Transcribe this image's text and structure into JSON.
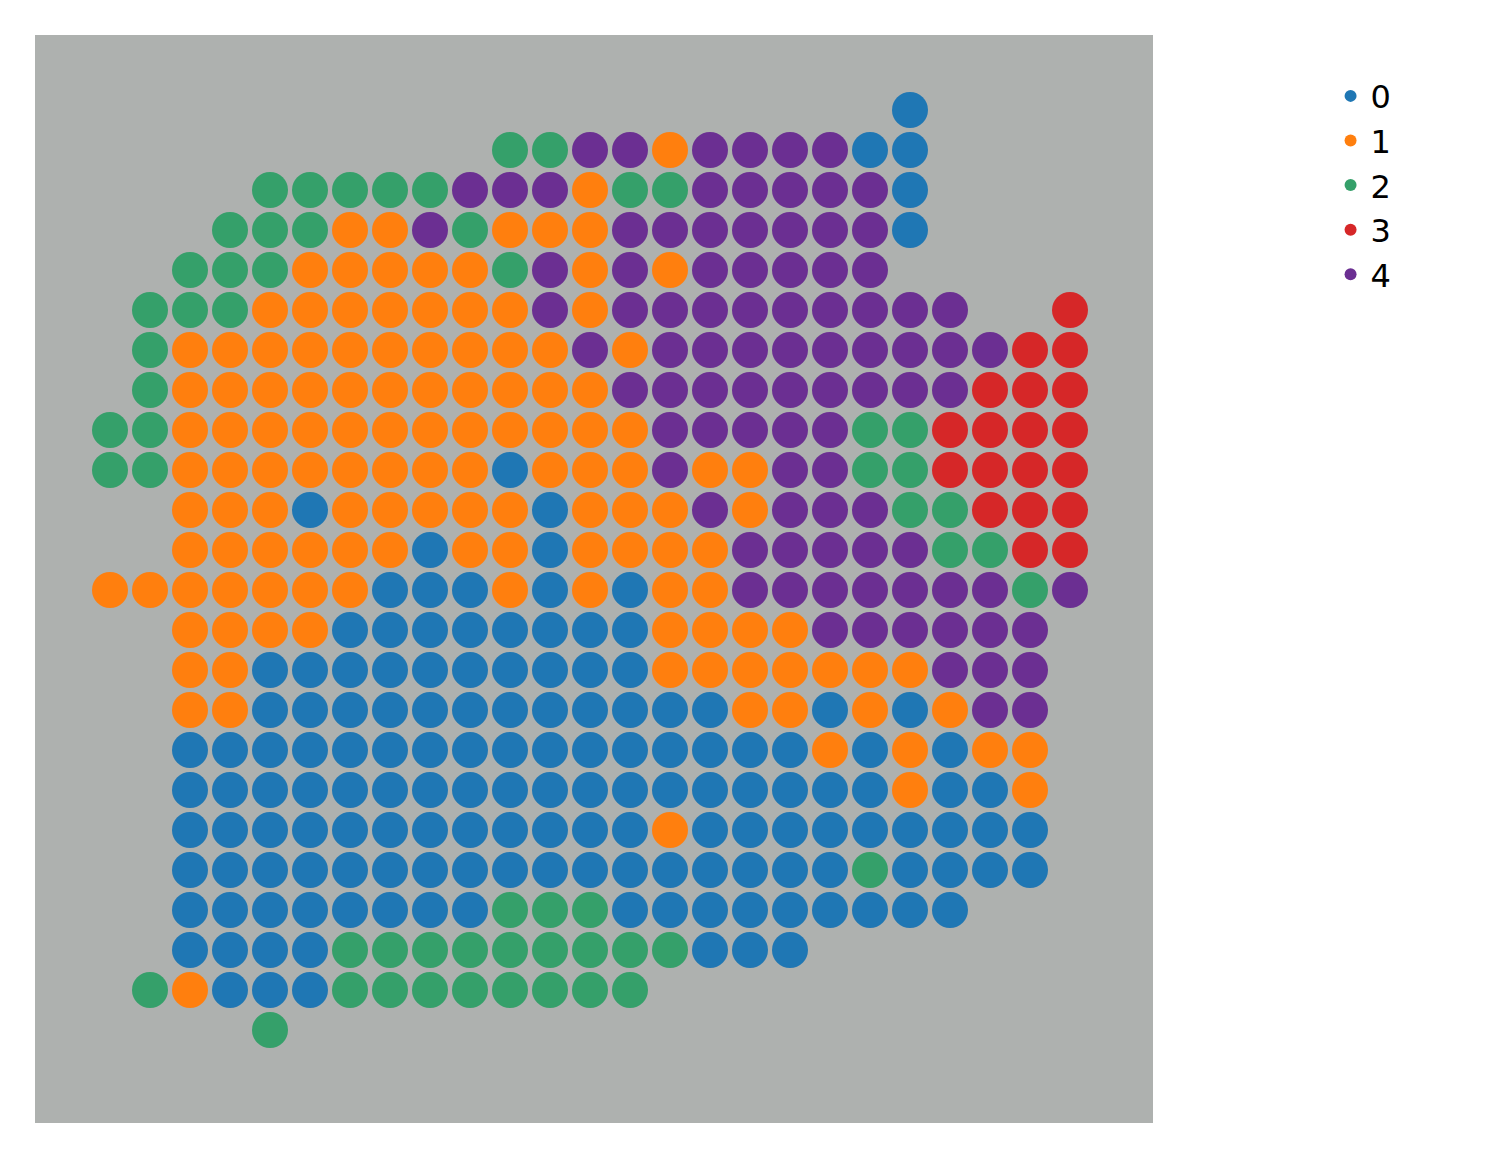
{
  "chart_data": {
    "type": "spatial_scatter",
    "x": [
      110,
      150,
      190,
      230,
      270,
      310,
      350,
      390,
      430,
      470,
      510,
      550,
      590,
      630,
      670,
      710,
      750,
      790,
      830,
      870,
      910,
      950,
      990,
      1030,
      1070
    ],
    "y": [
      110,
      150,
      190,
      230,
      270,
      310,
      350,
      390,
      430,
      470,
      510,
      550,
      590,
      630,
      670,
      710,
      750,
      790,
      830,
      870,
      910,
      950,
      990,
      1030
    ],
    "cells": [
      [
        null,
        null,
        null,
        null,
        null,
        null,
        null,
        null,
        null,
        null,
        null,
        null,
        null,
        null,
        null,
        null,
        null,
        null,
        null,
        null,
        0,
        null,
        null,
        null,
        null
      ],
      [
        null,
        null,
        null,
        null,
        null,
        null,
        null,
        null,
        null,
        null,
        2,
        2,
        4,
        4,
        1,
        4,
        4,
        4,
        4,
        0,
        0,
        null,
        null,
        null,
        null
      ],
      [
        null,
        null,
        null,
        null,
        2,
        2,
        2,
        2,
        2,
        4,
        4,
        4,
        1,
        2,
        2,
        4,
        4,
        4,
        4,
        4,
        0,
        null,
        null,
        null,
        null
      ],
      [
        null,
        null,
        null,
        2,
        2,
        2,
        1,
        1,
        4,
        2,
        1,
        1,
        1,
        4,
        4,
        4,
        4,
        4,
        4,
        4,
        0,
        null,
        null,
        null,
        null
      ],
      [
        null,
        null,
        2,
        2,
        2,
        1,
        1,
        1,
        1,
        1,
        2,
        4,
        1,
        4,
        1,
        4,
        4,
        4,
        4,
        4,
        null,
        null,
        null,
        null,
        null
      ],
      [
        null,
        2,
        2,
        2,
        1,
        1,
        1,
        1,
        1,
        1,
        1,
        4,
        1,
        4,
        4,
        4,
        4,
        4,
        4,
        4,
        4,
        4,
        null,
        null,
        3
      ],
      [
        null,
        2,
        1,
        1,
        1,
        1,
        1,
        1,
        1,
        1,
        1,
        1,
        4,
        1,
        4,
        4,
        4,
        4,
        4,
        4,
        4,
        4,
        4,
        3,
        3
      ],
      [
        null,
        2,
        1,
        1,
        1,
        1,
        1,
        1,
        1,
        1,
        1,
        1,
        1,
        4,
        4,
        4,
        4,
        4,
        4,
        4,
        4,
        4,
        3,
        3,
        3
      ],
      [
        2,
        2,
        1,
        1,
        1,
        1,
        1,
        1,
        1,
        1,
        1,
        1,
        1,
        1,
        4,
        4,
        4,
        4,
        4,
        2,
        2,
        3,
        3,
        3,
        3
      ],
      [
        2,
        2,
        1,
        1,
        1,
        1,
        1,
        1,
        1,
        1,
        0,
        1,
        1,
        1,
        4,
        1,
        1,
        4,
        4,
        2,
        2,
        3,
        3,
        3,
        3
      ],
      [
        null,
        null,
        1,
        1,
        1,
        0,
        1,
        1,
        1,
        1,
        1,
        0,
        1,
        1,
        1,
        4,
        1,
        4,
        4,
        4,
        2,
        2,
        3,
        3,
        3
      ],
      [
        null,
        null,
        1,
        1,
        1,
        1,
        1,
        1,
        0,
        1,
        1,
        0,
        1,
        1,
        1,
        1,
        4,
        4,
        4,
        4,
        4,
        2,
        2,
        3,
        3
      ],
      [
        1,
        1,
        1,
        1,
        1,
        1,
        1,
        0,
        0,
        0,
        1,
        0,
        1,
        0,
        1,
        1,
        4,
        4,
        4,
        4,
        4,
        4,
        4,
        2,
        4
      ],
      [
        null,
        null,
        1,
        1,
        1,
        1,
        0,
        0,
        0,
        0,
        0,
        0,
        0,
        0,
        1,
        1,
        1,
        1,
        4,
        4,
        4,
        4,
        4,
        4,
        null
      ],
      [
        null,
        null,
        1,
        1,
        0,
        0,
        0,
        0,
        0,
        0,
        0,
        0,
        0,
        0,
        1,
        1,
        1,
        1,
        1,
        1,
        1,
        4,
        4,
        4,
        null
      ],
      [
        null,
        null,
        1,
        1,
        0,
        0,
        0,
        0,
        0,
        0,
        0,
        0,
        0,
        0,
        0,
        0,
        1,
        1,
        0,
        1,
        0,
        1,
        4,
        4,
        null
      ],
      [
        null,
        null,
        0,
        0,
        0,
        0,
        0,
        0,
        0,
        0,
        0,
        0,
        0,
        0,
        0,
        0,
        0,
        0,
        1,
        0,
        1,
        0,
        1,
        1,
        null
      ],
      [
        null,
        null,
        0,
        0,
        0,
        0,
        0,
        0,
        0,
        0,
        0,
        0,
        0,
        0,
        0,
        0,
        0,
        0,
        0,
        0,
        1,
        0,
        0,
        1,
        null
      ],
      [
        null,
        null,
        0,
        0,
        0,
        0,
        0,
        0,
        0,
        0,
        0,
        0,
        0,
        0,
        1,
        0,
        0,
        0,
        0,
        0,
        0,
        0,
        0,
        0,
        null
      ],
      [
        null,
        null,
        0,
        0,
        0,
        0,
        0,
        0,
        0,
        0,
        0,
        0,
        0,
        0,
        0,
        0,
        0,
        0,
        0,
        2,
        0,
        0,
        0,
        0,
        null
      ],
      [
        null,
        null,
        0,
        0,
        0,
        0,
        0,
        0,
        0,
        0,
        2,
        2,
        2,
        0,
        0,
        0,
        0,
        0,
        0,
        0,
        0,
        0,
        null,
        null,
        null
      ],
      [
        null,
        null,
        0,
        0,
        0,
        0,
        2,
        2,
        2,
        2,
        2,
        2,
        2,
        2,
        2,
        0,
        0,
        0,
        null,
        null,
        null,
        null,
        null,
        null,
        null
      ],
      [
        null,
        2,
        1,
        0,
        0,
        0,
        2,
        2,
        2,
        2,
        2,
        2,
        2,
        2,
        null,
        null,
        null,
        null,
        null,
        null,
        null,
        null,
        null,
        null,
        null
      ],
      [
        null,
        null,
        null,
        null,
        2,
        null,
        null,
        null,
        null,
        null,
        null,
        null,
        null,
        null,
        null,
        null,
        null,
        null,
        null,
        null,
        null,
        null,
        null,
        null,
        null
      ]
    ],
    "series": [
      {
        "name": "0",
        "color": "#1f77b4"
      },
      {
        "name": "1",
        "color": "#ff7f0e"
      },
      {
        "name": "2",
        "color": "#35a06a"
      },
      {
        "name": "3",
        "color": "#d62728"
      },
      {
        "name": "4",
        "color": "#6b2f92"
      }
    ],
    "xlim": [
      36,
      1152
    ],
    "ylim": [
      1122,
      36
    ],
    "tick_labels": false,
    "legend": "right",
    "marker": "circle"
  }
}
